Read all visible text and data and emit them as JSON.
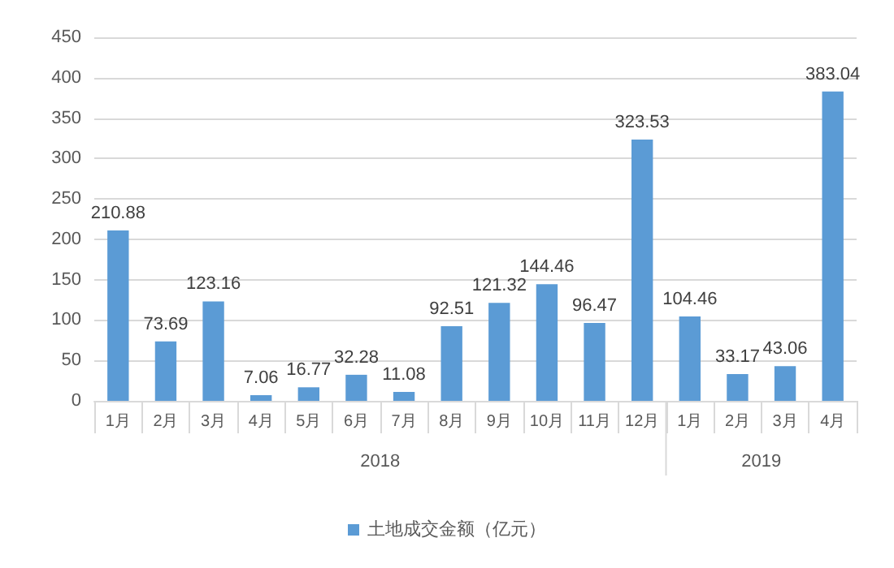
{
  "chart_data": {
    "type": "bar",
    "categories": [
      "1月",
      "2月",
      "3月",
      "4月",
      "5月",
      "6月",
      "7月",
      "8月",
      "9月",
      "10月",
      "11月",
      "12月",
      "1月",
      "2月",
      "3月",
      "4月"
    ],
    "series": [
      {
        "name": "土地成交金额（亿元）",
        "color": "#5b9bd5",
        "values": [
          210.88,
          73.69,
          123.16,
          7.06,
          16.77,
          32.28,
          11.08,
          92.51,
          121.32,
          144.46,
          96.47,
          323.53,
          104.46,
          33.17,
          43.06,
          383.04
        ]
      }
    ],
    "annotations": [
      "2018",
      "2019"
    ],
    "ylim": [
      0,
      450
    ],
    "yticks": [
      0,
      50,
      100,
      150,
      200,
      250,
      300,
      350,
      400,
      450
    ],
    "grid": "y",
    "legend": "bottom",
    "data_labels": true
  }
}
